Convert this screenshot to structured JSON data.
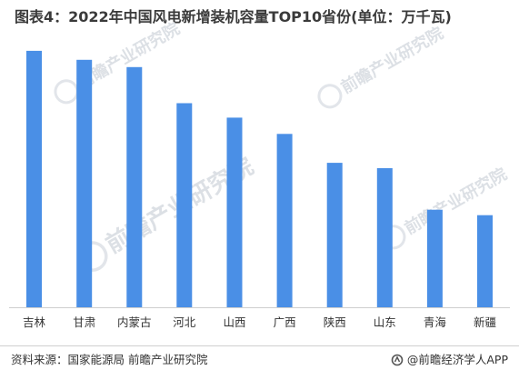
{
  "title": "图表4：2022年中国风电新增装机容量TOP10省份(单位：万千瓦)",
  "footer": {
    "source": "资料来源：国家能源局 前瞻产业研究院",
    "brand": "@前瞻经济学人APP"
  },
  "watermark": {
    "text": "前瞻产业研究院"
  },
  "colors": {
    "bar": "#4a8fe6",
    "axis": "#cfcfcf",
    "text": "#333333"
  },
  "chart_data": {
    "type": "bar",
    "title": "图表4：2022年中国风电新增装机容量TOP10省份(单位：万千瓦)",
    "categories": [
      "吉林",
      "甘肃",
      "内蒙古",
      "河北",
      "山西",
      "广西",
      "陕西",
      "山东",
      "青海",
      "新疆"
    ],
    "values": [
      710,
      685,
      665,
      565,
      525,
      480,
      400,
      385,
      270,
      255
    ],
    "xlabel": "",
    "ylabel": "",
    "ylim": [
      0,
      750
    ],
    "grid": false,
    "legend": "none"
  }
}
